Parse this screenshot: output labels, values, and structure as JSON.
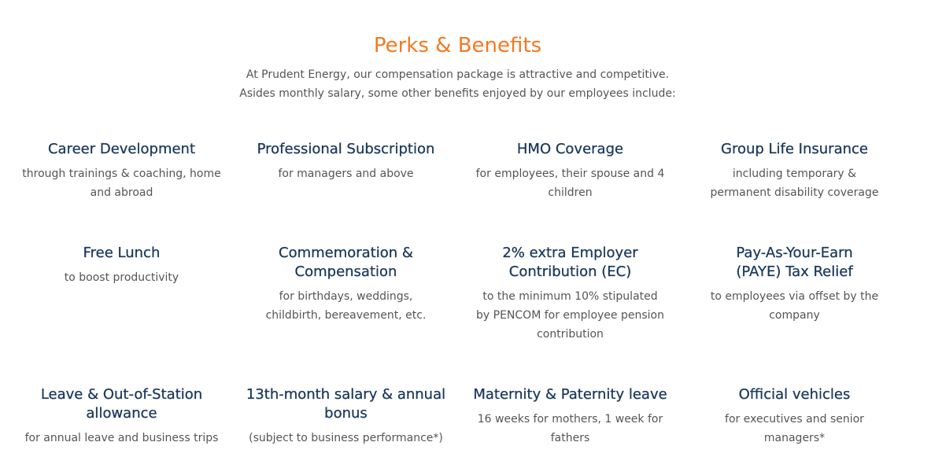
{
  "header": {
    "title": "Perks & Benefits",
    "intro_line1": "At Prudent Energy, our compensation package is attractive and competitive.",
    "intro_line2": "Asides monthly salary, some other benefits enjoyed by our employees include:"
  },
  "benefits": [
    {
      "title": "Career Development",
      "desc": "through trainings & coaching, home and abroad"
    },
    {
      "title": "Professional Subscription",
      "desc": "for managers and above"
    },
    {
      "title": "HMO Coverage",
      "desc": "for employees, their spouse and 4 children"
    },
    {
      "title": "Group Life Insurance",
      "desc": "including temporary & permanent disability coverage"
    },
    {
      "title": "Free Lunch",
      "desc": "to boost productivity"
    },
    {
      "title": "Commemoration & Compensation",
      "desc": "for birthdays, weddings, childbirth, bereavement, etc."
    },
    {
      "title": "2% extra Employer Contribution (EC)",
      "desc": "to the minimum 10% stipulated by PENCOM for employee pension contribution"
    },
    {
      "title": "Pay-As-Your-Earn (PAYE) Tax Relief",
      "desc": "to employees via offset by the company"
    },
    {
      "title": "Leave & Out-of-Station allowance",
      "desc": "for annual leave and business trips"
    },
    {
      "title": "13th-month salary & annual bonus",
      "desc": "(subject to business performance*)"
    },
    {
      "title": "Maternity & Paternity leave",
      "desc": "16 weeks for mothers, 1 week for fathers"
    },
    {
      "title": "Official vehicles",
      "desc": "for executives and senior managers*"
    }
  ]
}
